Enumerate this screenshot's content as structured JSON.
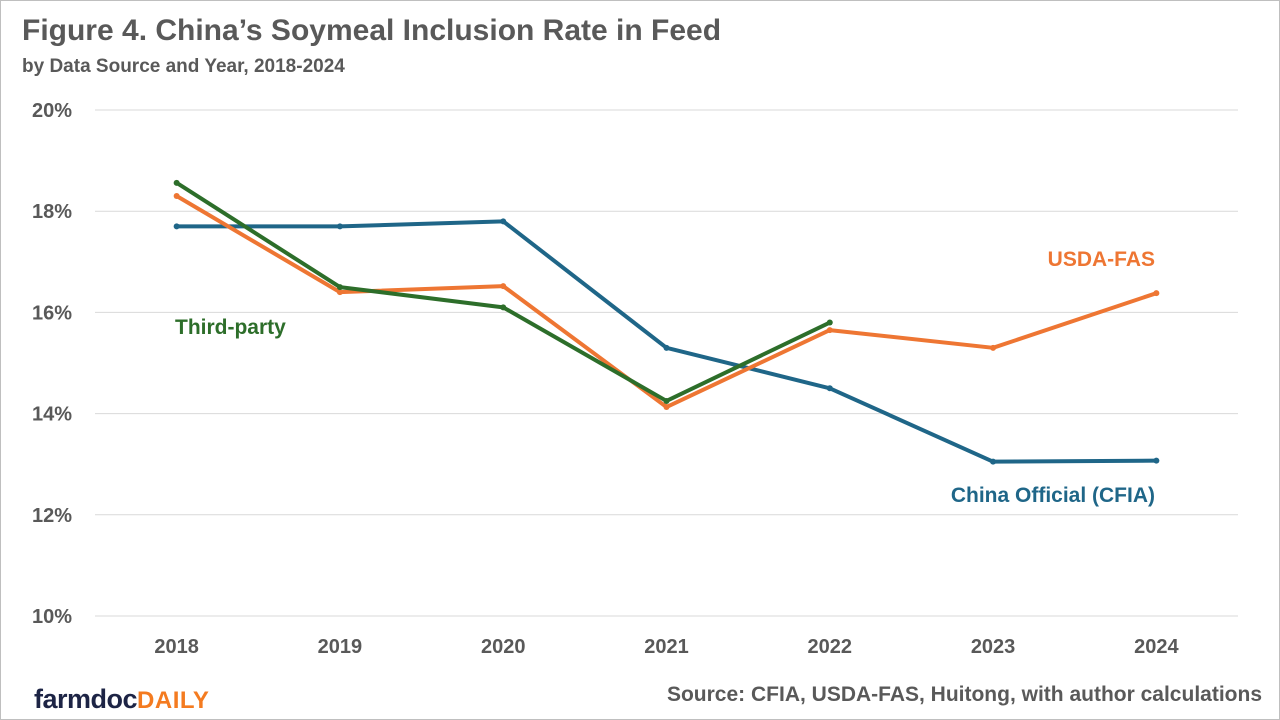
{
  "chart_data": {
    "type": "line",
    "title": "Figure 4. China’s Soymeal Inclusion Rate in Feed",
    "subtitle": "by Data Source and Year, 2018-2024",
    "xlabel": "",
    "ylabel": "",
    "categories": [
      "2018",
      "2019",
      "2020",
      "2021",
      "2022",
      "2023",
      "2024"
    ],
    "ylim": [
      10,
      20
    ],
    "yticks": [
      10,
      12,
      14,
      16,
      18,
      20
    ],
    "ytick_labels": [
      "10%",
      "12%",
      "14%",
      "16%",
      "18%",
      "20%"
    ],
    "grid": true,
    "series": [
      {
        "name": "China Official (CFIA)",
        "color": "#1f6688",
        "values": [
          17.7,
          17.7,
          17.8,
          15.3,
          14.5,
          13.05,
          13.07
        ]
      },
      {
        "name": "USDA-FAS",
        "color": "#ee7633",
        "values": [
          18.3,
          16.4,
          16.52,
          14.13,
          15.65,
          15.3,
          16.38
        ]
      },
      {
        "name": "Third-party",
        "color": "#2d6e2a",
        "values": [
          18.56,
          16.5,
          16.1,
          14.25,
          15.8,
          null,
          null
        ]
      }
    ],
    "source": "Source: CFIA, USDA-FAS, Huitong, with author calculations"
  },
  "logo": {
    "part1": "farmdoc",
    "part2": "DAILY"
  }
}
